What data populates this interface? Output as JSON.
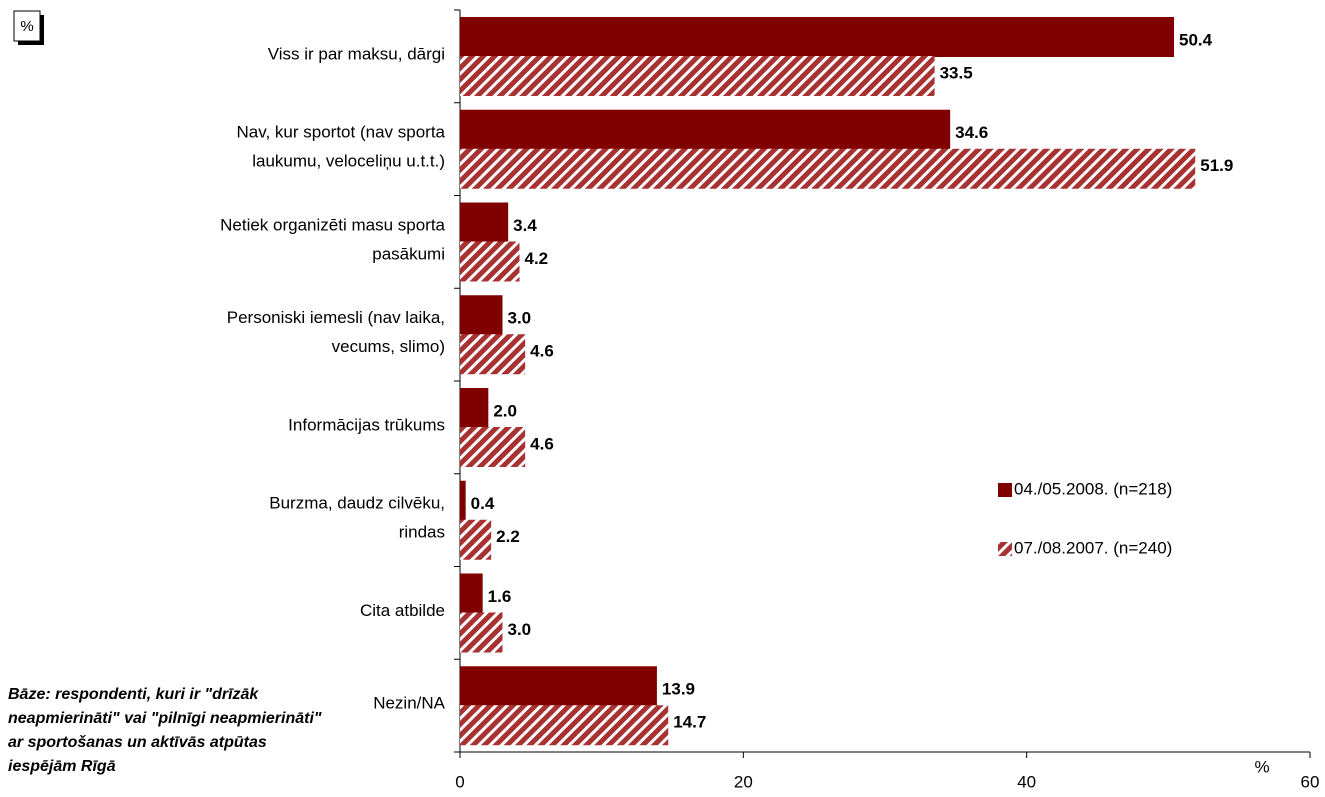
{
  "chart_data": {
    "type": "bar",
    "orientation": "horizontal",
    "categories": [
      "Viss ir par maksu, dārgi",
      "Nav, kur sportot (nav sporta\nlaukumu, veloceliņu u.t.t.)",
      "Netiek organizēti masu sporta\npasākumi",
      "Personiski iemesli (nav laika,\nvecums, slimo)",
      "Informācijas trūkums",
      "Burzma, daudz cilvēku,\nrindas",
      "Cita atbilde",
      "Nezin/NA"
    ],
    "series": [
      {
        "name": "04./05.2008. (n=218)",
        "color": "#800000",
        "pattern": "solid",
        "values": [
          50.4,
          34.6,
          3.4,
          3.0,
          2.0,
          0.4,
          1.6,
          13.9
        ],
        "value_labels": [
          "50.4",
          "34.6",
          "3.4",
          "3.0",
          "2.0",
          "0.4",
          "1.6",
          "13.9"
        ]
      },
      {
        "name": "07./08.2007. (n=240)",
        "color": "#a83232",
        "pattern": "hatch",
        "values": [
          33.5,
          51.9,
          4.2,
          4.6,
          4.6,
          2.2,
          3.0,
          14.7
        ],
        "value_labels": [
          "33.5",
          "51.9",
          "4.2",
          "4.6",
          "4.6",
          "2.2",
          "3.0",
          "14.7"
        ]
      }
    ],
    "xlim": [
      0,
      60
    ],
    "xticks": [
      0,
      20,
      40,
      60
    ],
    "x_label": "%",
    "unit_box": "%",
    "note": "Bāze: respondenti, kuri ir \"drīzāk\nneapmierināti\" vai \"pilnīgi neapmierināti\"\nar sportošanas un aktīvās atpūtas\niespējām Rīgā",
    "legend": "right",
    "grid": false
  }
}
